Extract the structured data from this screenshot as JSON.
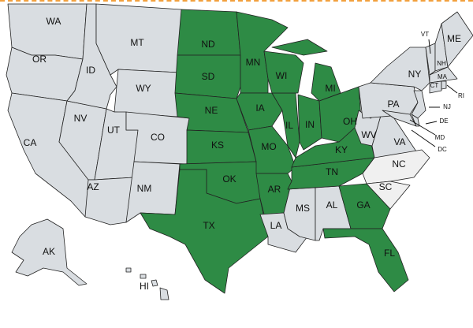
{
  "colors": {
    "highlighted": "#2e8b45",
    "default": "#d9dde1",
    "light": "#f0f0f0",
    "border": "#222222"
  },
  "states": [
    {
      "abbr": "WA",
      "shade": "default"
    },
    {
      "abbr": "OR",
      "shade": "default"
    },
    {
      "abbr": "CA",
      "shade": "default"
    },
    {
      "abbr": "NV",
      "shade": "default"
    },
    {
      "abbr": "ID",
      "shade": "default"
    },
    {
      "abbr": "MT",
      "shade": "default"
    },
    {
      "abbr": "WY",
      "shade": "default"
    },
    {
      "abbr": "UT",
      "shade": "default"
    },
    {
      "abbr": "CO",
      "shade": "default"
    },
    {
      "abbr": "AZ",
      "shade": "default"
    },
    {
      "abbr": "NM",
      "shade": "default"
    },
    {
      "abbr": "ND",
      "shade": "highlighted"
    },
    {
      "abbr": "SD",
      "shade": "highlighted"
    },
    {
      "abbr": "NE",
      "shade": "highlighted"
    },
    {
      "abbr": "KS",
      "shade": "highlighted"
    },
    {
      "abbr": "OK",
      "shade": "highlighted"
    },
    {
      "abbr": "TX",
      "shade": "highlighted"
    },
    {
      "abbr": "MN",
      "shade": "highlighted"
    },
    {
      "abbr": "IA",
      "shade": "highlighted"
    },
    {
      "abbr": "MO",
      "shade": "highlighted"
    },
    {
      "abbr": "AR",
      "shade": "highlighted"
    },
    {
      "abbr": "LA",
      "shade": "default"
    },
    {
      "abbr": "MS",
      "shade": "default"
    },
    {
      "abbr": "AL",
      "shade": "default"
    },
    {
      "abbr": "GA",
      "shade": "highlighted"
    },
    {
      "abbr": "FL",
      "shade": "highlighted"
    },
    {
      "abbr": "TN",
      "shade": "highlighted"
    },
    {
      "abbr": "KY",
      "shade": "highlighted"
    },
    {
      "abbr": "IL",
      "shade": "highlighted"
    },
    {
      "abbr": "IN",
      "shade": "highlighted"
    },
    {
      "abbr": "OH",
      "shade": "highlighted"
    },
    {
      "abbr": "WI",
      "shade": "highlighted"
    },
    {
      "abbr": "MI",
      "shade": "highlighted"
    },
    {
      "abbr": "WV",
      "shade": "default"
    },
    {
      "abbr": "VA",
      "shade": "default"
    },
    {
      "abbr": "NC",
      "shade": "light"
    },
    {
      "abbr": "SC",
      "shade": "light"
    },
    {
      "abbr": "PA",
      "shade": "default"
    },
    {
      "abbr": "NY",
      "shade": "default"
    },
    {
      "abbr": "NJ",
      "shade": "default"
    },
    {
      "abbr": "MD",
      "shade": "default"
    },
    {
      "abbr": "DE",
      "shade": "default"
    },
    {
      "abbr": "DC",
      "shade": "default"
    },
    {
      "abbr": "VT",
      "shade": "default"
    },
    {
      "abbr": "NH",
      "shade": "default"
    },
    {
      "abbr": "ME",
      "shade": "default"
    },
    {
      "abbr": "MA",
      "shade": "default"
    },
    {
      "abbr": "CT",
      "shade": "default"
    },
    {
      "abbr": "RI",
      "shade": "default"
    },
    {
      "abbr": "AK",
      "shade": "default"
    },
    {
      "abbr": "HI",
      "shade": "default"
    }
  ]
}
